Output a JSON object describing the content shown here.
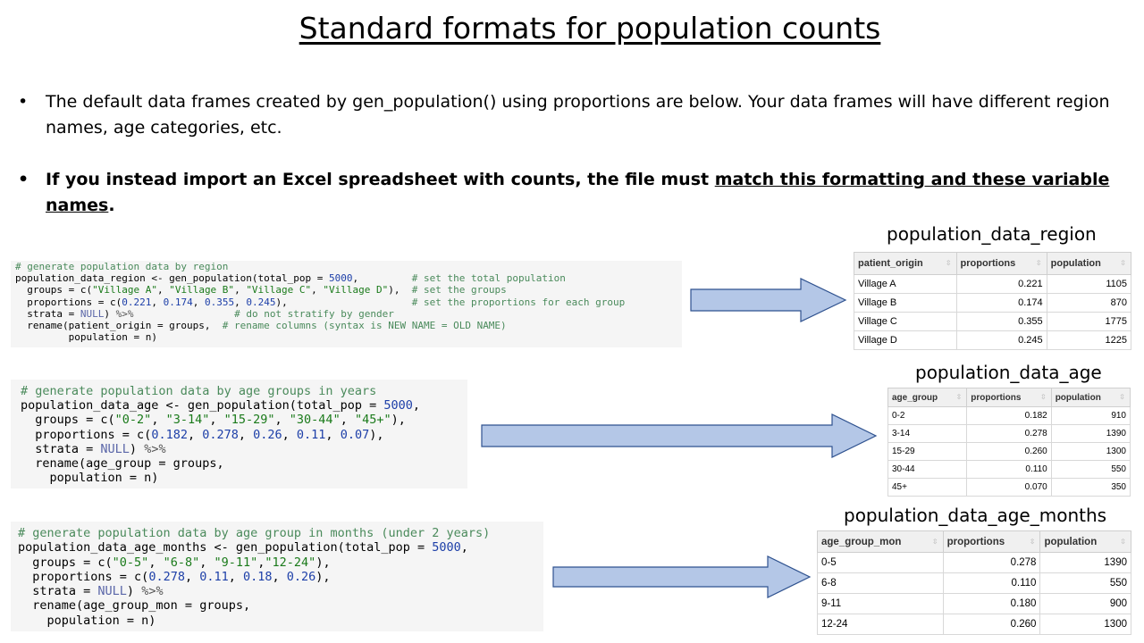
{
  "title": "Standard formats for population counts",
  "bullets": {
    "b1": "The default data frames created by gen_population() using proportions are below. Your data frames will have different region names, age categories, etc.",
    "b2_prefix": "If you instead import an Excel spreadsheet with counts, the file must ",
    "b2_underlined": "match this formatting and these variable names",
    "b2_suffix": "."
  },
  "code_blocks": [
    {
      "lines": [
        "# generate population data by region",
        "population_data_region <- gen_population(total_pop = 5000,         # set the total population",
        "  groups = c(\"Village A\", \"Village B\", \"Village C\", \"Village D\"),  # set the groups",
        "  proportions = c(0.221, 0.174, 0.355, 0.245),                     # set the proportions for each group",
        "  strata = NULL) %>%                 # do not stratify by gender",
        "  rename(patient_origin = groups,  # rename columns (syntax is NEW NAME = OLD NAME)",
        "         population = n)"
      ]
    },
    {
      "lines": [
        "# generate population data by age groups in years",
        "population_data_age <- gen_population(total_pop = 5000,",
        "  groups = c(\"0-2\", \"3-14\", \"15-29\", \"30-44\", \"45+\"),",
        "  proportions = c(0.182, 0.278, 0.26, 0.11, 0.07),",
        "  strata = NULL) %>%",
        "  rename(age_group = groups,",
        "    population = n)"
      ]
    },
    {
      "lines": [
        "# generate population data by age group in months (under 2 years)",
        "population_data_age_months <- gen_population(total_pop = 5000,",
        "  groups = c(\"0-5\", \"6-8\", \"9-11\",\"12-24\"),",
        "  proportions = c(0.278, 0.11, 0.18, 0.26),",
        "  strata = NULL) %>%",
        "  rename(age_group_mon = groups,",
        "    population = n)"
      ]
    }
  ],
  "tables": [
    {
      "label": "population_data_region",
      "columns": [
        "patient_origin",
        "proportions",
        "population"
      ],
      "rows": [
        [
          "Village A",
          "0.221",
          "1105"
        ],
        [
          "Village B",
          "0.174",
          "870"
        ],
        [
          "Village C",
          "0.355",
          "1775"
        ],
        [
          "Village D",
          "0.245",
          "1225"
        ]
      ]
    },
    {
      "label": "population_data_age",
      "columns": [
        "age_group",
        "proportions",
        "population"
      ],
      "rows": [
        [
          "0-2",
          "0.182",
          "910"
        ],
        [
          "3-14",
          "0.278",
          "1390"
        ],
        [
          "15-29",
          "0.260",
          "1300"
        ],
        [
          "30-44",
          "0.110",
          "550"
        ],
        [
          "45+",
          "0.070",
          "350"
        ]
      ]
    },
    {
      "label": "population_data_age_months",
      "columns": [
        "age_group_mon",
        "proportions",
        "population"
      ],
      "rows": [
        [
          "0-5",
          "0.278",
          "1390"
        ],
        [
          "6-8",
          "0.110",
          "550"
        ],
        [
          "9-11",
          "0.180",
          "900"
        ],
        [
          "12-24",
          "0.260",
          "1300"
        ]
      ]
    }
  ],
  "colors": {
    "arrow_fill": "#b4c7e7",
    "arrow_stroke": "#2f528f",
    "code_background": "#f5f5f5",
    "code_comment": "#4a8a5b",
    "code_string": "#1a7a1a",
    "code_number": "#1d3fa8",
    "code_keyword": "#5a66a8"
  }
}
